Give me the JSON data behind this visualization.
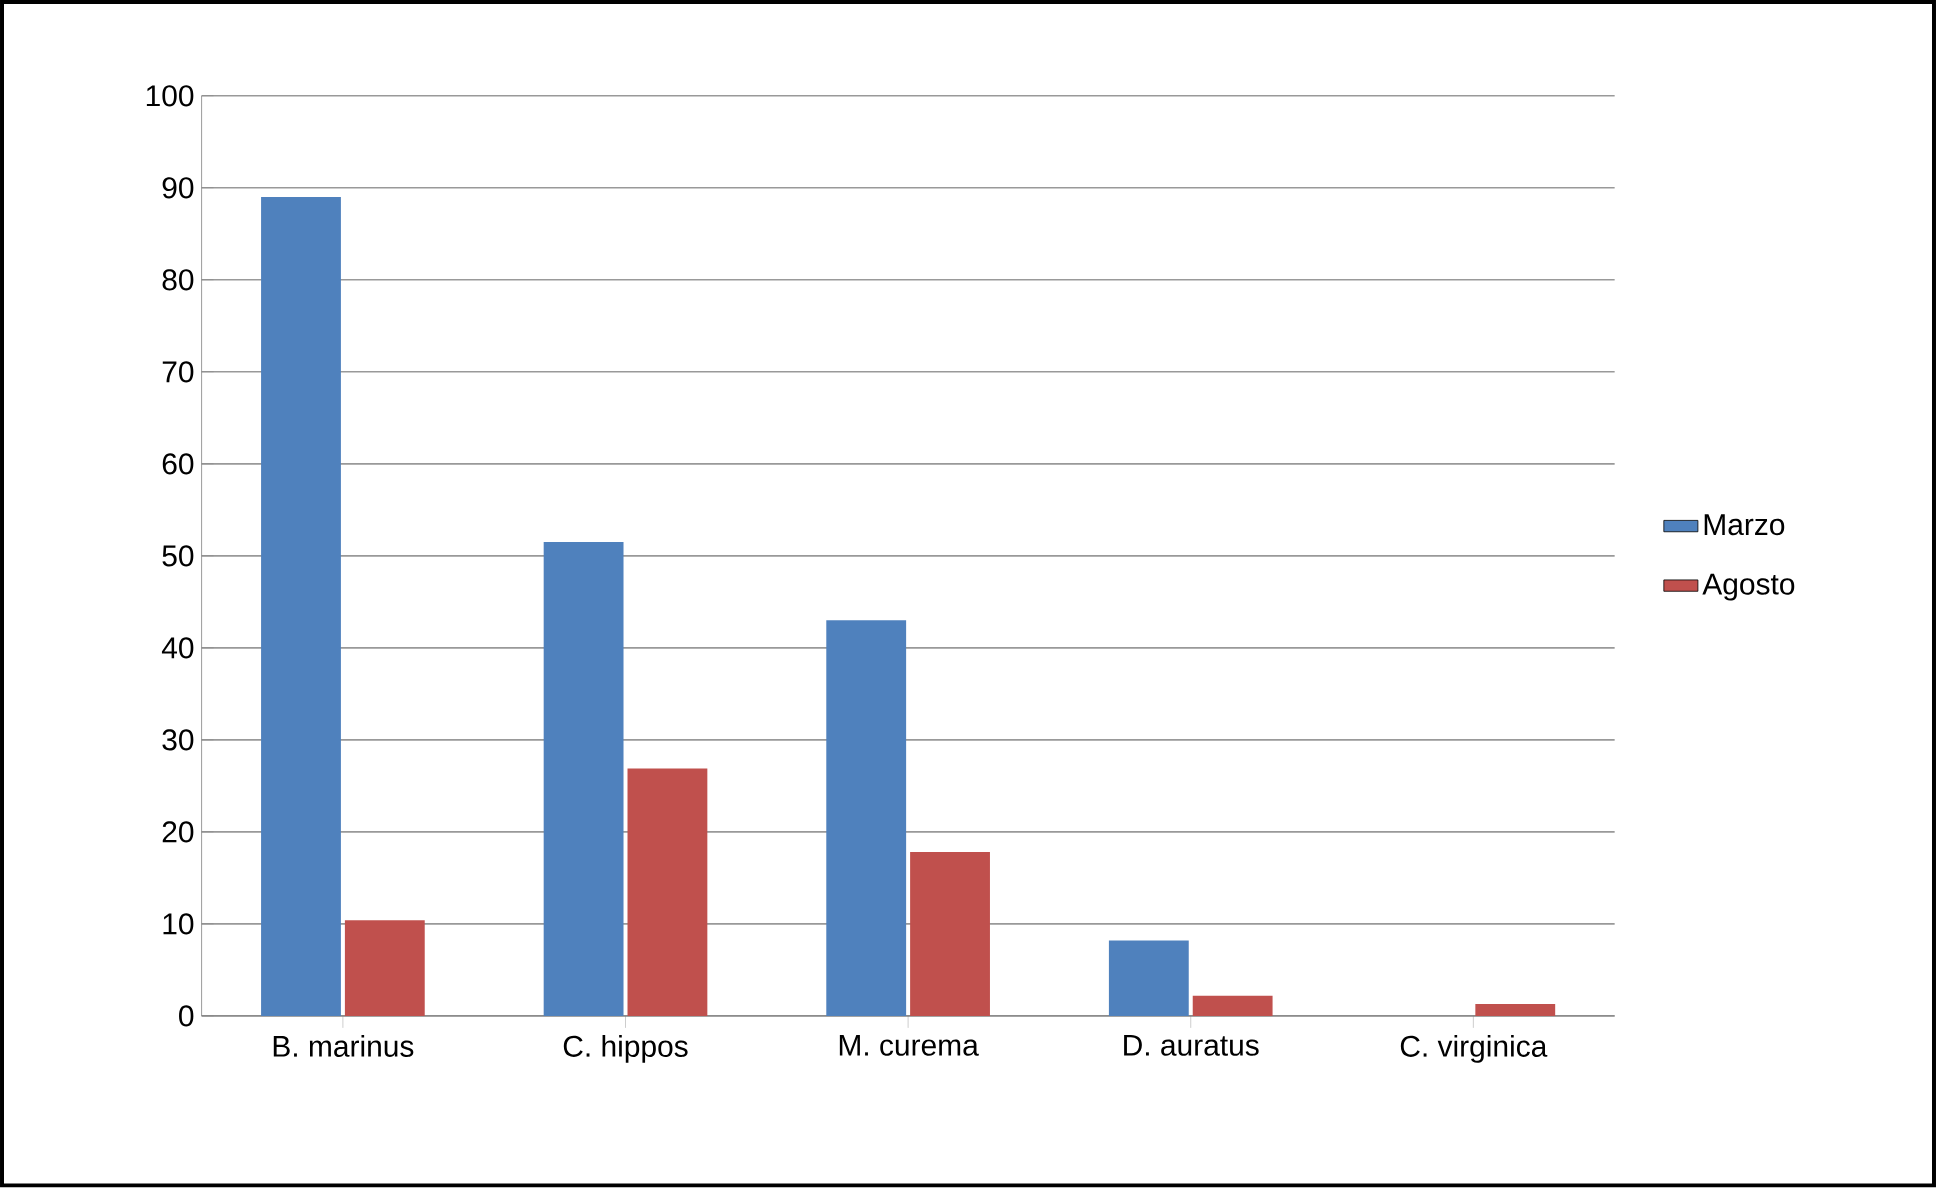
{
  "chart_data": {
    "type": "bar",
    "categories": [
      "B. marinus",
      "C. hippos",
      "M. curema",
      "D. auratus",
      "C. virginica"
    ],
    "series": [
      {
        "name": "Marzo",
        "color": "#4f81bd",
        "values": [
          89,
          51.5,
          43,
          8.2,
          0
        ]
      },
      {
        "name": "Agosto",
        "color": "#c0504d",
        "values": [
          10.4,
          26.9,
          17.8,
          2.2,
          1.3
        ]
      }
    ],
    "ylim": [
      0,
      100
    ],
    "yticks": [
      0,
      10,
      20,
      30,
      40,
      50,
      60,
      70,
      80,
      90,
      100
    ],
    "grid": "y",
    "legend": "right"
  }
}
